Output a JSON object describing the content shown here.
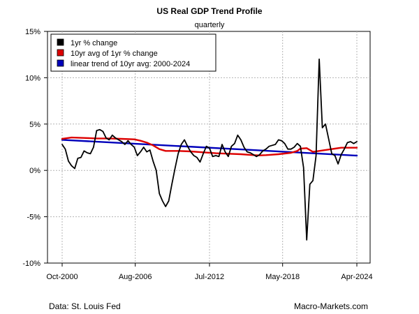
{
  "chart_data": {
    "type": "line",
    "title": "US Real GDP Trend Profile",
    "subtitle": "quarterly",
    "xlabel": "",
    "ylabel": "",
    "x_tick_labels": [
      "Oct-2000",
      "Aug-2006",
      "Jul-2012",
      "May-2018",
      "Apr-2024"
    ],
    "x_tick_times": [
      2000.75,
      2006.58,
      2012.5,
      2018.33,
      2024.25
    ],
    "x_range": [
      2000.75,
      2024.25
    ],
    "y_tick_labels": [
      "-10%",
      "-5%",
      "0%",
      "5%",
      "10%",
      "15%"
    ],
    "y_tick_values": [
      -10,
      -5,
      0,
      5,
      10,
      15
    ],
    "ylim": [
      -10,
      15
    ],
    "grid": true,
    "legend_placement": "top-left",
    "series": [
      {
        "name": "1yr % change",
        "color": "#000000",
        "x": [
          2000.75,
          2001.0,
          2001.25,
          2001.5,
          2001.75,
          2002.0,
          2002.25,
          2002.5,
          2002.75,
          2003.0,
          2003.25,
          2003.5,
          2003.75,
          2004.0,
          2004.25,
          2004.5,
          2004.75,
          2005.0,
          2005.25,
          2005.5,
          2005.75,
          2006.0,
          2006.25,
          2006.5,
          2006.75,
          2007.0,
          2007.25,
          2007.5,
          2007.75,
          2008.0,
          2008.25,
          2008.5,
          2008.75,
          2009.0,
          2009.25,
          2009.5,
          2009.75,
          2010.0,
          2010.25,
          2010.5,
          2010.75,
          2011.0,
          2011.25,
          2011.5,
          2011.75,
          2012.0,
          2012.25,
          2012.5,
          2012.75,
          2013.0,
          2013.25,
          2013.5,
          2013.75,
          2014.0,
          2014.25,
          2014.5,
          2014.75,
          2015.0,
          2015.25,
          2015.5,
          2015.75,
          2016.0,
          2016.25,
          2016.5,
          2016.75,
          2017.0,
          2017.25,
          2017.5,
          2017.75,
          2018.0,
          2018.25,
          2018.5,
          2018.75,
          2019.0,
          2019.25,
          2019.5,
          2019.75,
          2020.0,
          2020.25,
          2020.5,
          2020.75,
          2021.0,
          2021.25,
          2021.5,
          2021.75,
          2022.0,
          2022.25,
          2022.5,
          2022.75,
          2023.0,
          2023.25,
          2023.5,
          2023.75,
          2024.0,
          2024.25
        ],
        "values": [
          2.8,
          2.3,
          1.0,
          0.5,
          0.2,
          1.3,
          1.4,
          2.1,
          1.9,
          1.8,
          2.5,
          4.3,
          4.4,
          4.2,
          3.5,
          3.3,
          3.8,
          3.5,
          3.3,
          3.1,
          2.8,
          3.2,
          2.8,
          2.5,
          1.6,
          2.0,
          2.5,
          2.0,
          2.2,
          1.0,
          0.0,
          -2.5,
          -3.3,
          -3.9,
          -3.3,
          -1.5,
          0.2,
          1.8,
          2.8,
          3.3,
          2.6,
          2.0,
          1.6,
          1.4,
          0.9,
          1.8,
          2.6,
          2.4,
          1.5,
          1.6,
          1.5,
          2.8,
          2.0,
          1.5,
          2.6,
          2.9,
          3.8,
          3.3,
          2.5,
          2.0,
          1.9,
          1.7,
          1.5,
          1.7,
          2.1,
          2.3,
          2.6,
          2.7,
          2.8,
          3.3,
          3.2,
          2.9,
          2.3,
          2.3,
          2.5,
          2.9,
          2.6,
          0.3,
          -7.5,
          -1.5,
          -1.1,
          1.6,
          12.0,
          4.6,
          5.0,
          3.4,
          1.8,
          1.6,
          0.7,
          1.7,
          2.3,
          3.0,
          3.1,
          2.9,
          3.1
        ]
      },
      {
        "name": "10yr avg of 1yr % change",
        "color": "#dd0000",
        "x": [
          2000.75,
          2001.5,
          2002.5,
          2003.5,
          2004.5,
          2005.5,
          2006.5,
          2007.0,
          2007.5,
          2008.0,
          2008.5,
          2009.0,
          2010.0,
          2011.0,
          2012.0,
          2013.0,
          2014.0,
          2015.0,
          2016.0,
          2016.5,
          2017.0,
          2018.0,
          2018.5,
          2019.0,
          2019.5,
          2019.75,
          2020.25,
          2020.75,
          2021.25,
          2022.0,
          2022.5,
          2023.0,
          2024.25
        ],
        "values": [
          3.4,
          3.55,
          3.5,
          3.45,
          3.45,
          3.4,
          3.35,
          3.2,
          3.0,
          2.7,
          2.3,
          2.1,
          2.1,
          2.05,
          1.95,
          1.85,
          1.8,
          1.75,
          1.65,
          1.62,
          1.65,
          1.75,
          1.82,
          1.9,
          2.1,
          2.35,
          2.4,
          2.0,
          2.1,
          2.25,
          2.35,
          2.45,
          2.45
        ]
      },
      {
        "name": "linear trend of 10yr avg: 2000-2024",
        "color": "#0000bb",
        "x": [
          2000.75,
          2024.25
        ],
        "values": [
          3.3,
          1.6
        ]
      }
    ],
    "footer_left": "Data: St. Louis Fed",
    "footer_right": "Macro-Markets.com"
  }
}
